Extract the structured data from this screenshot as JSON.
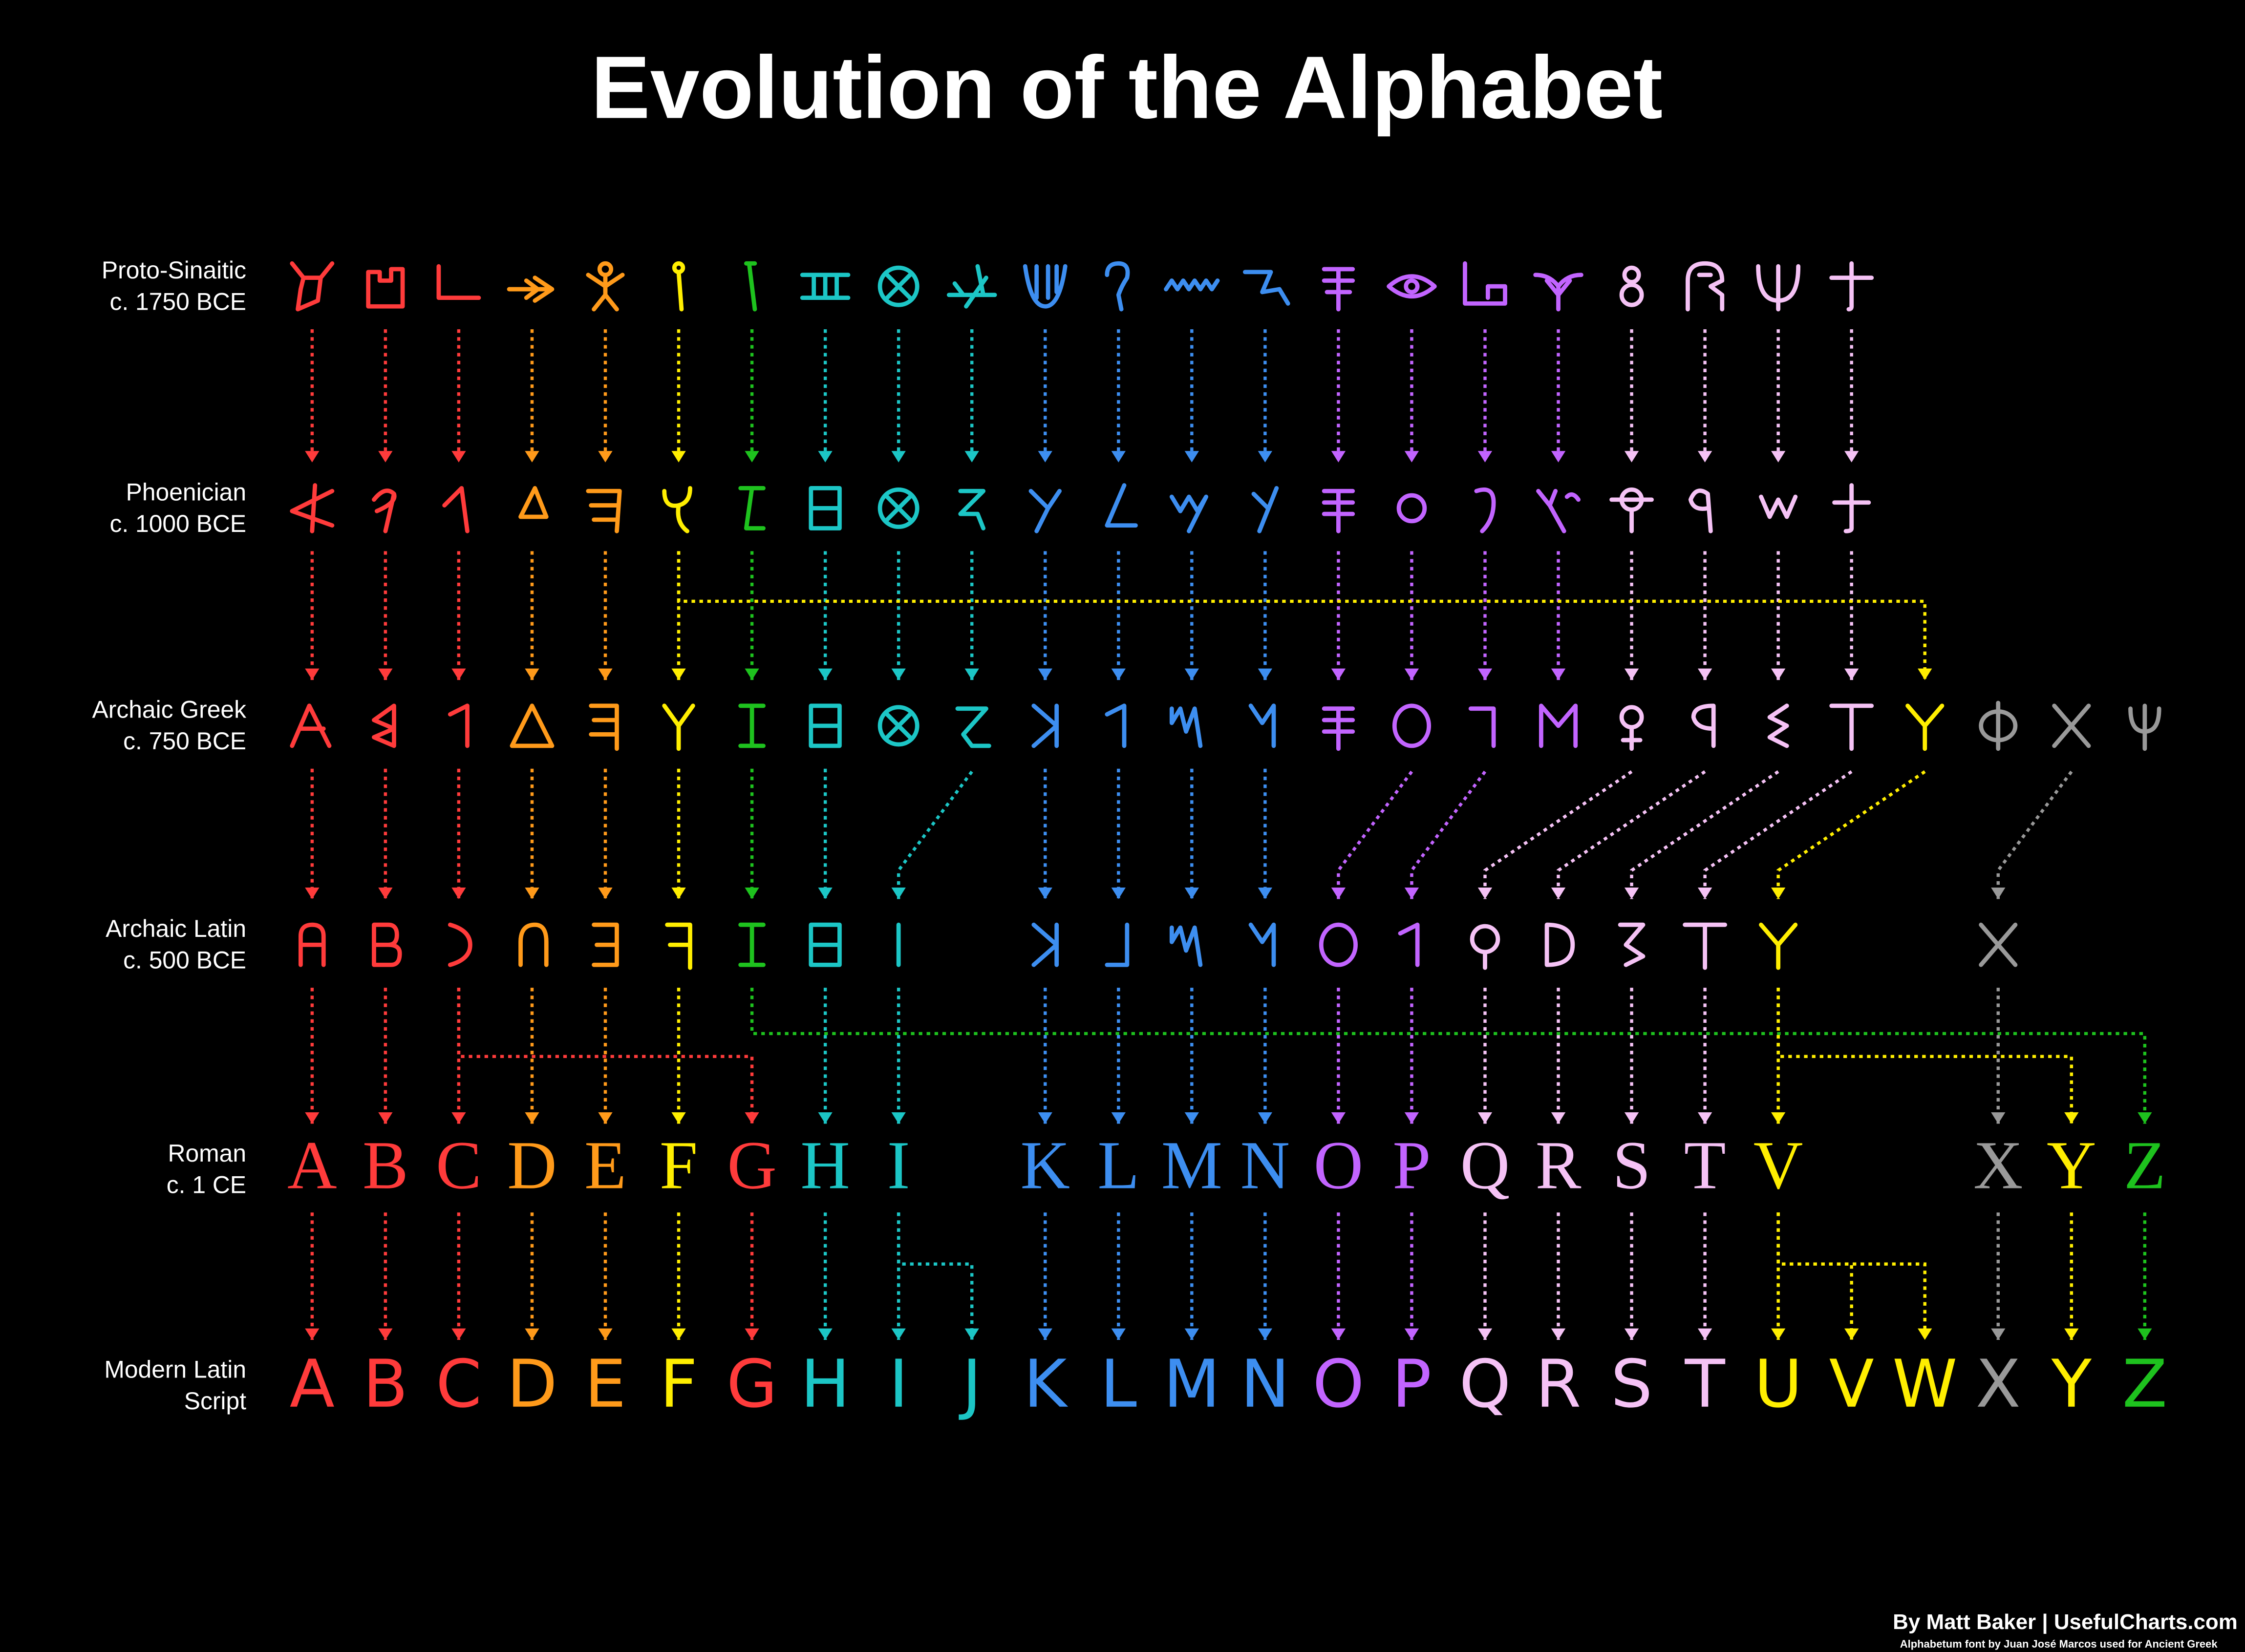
{
  "title": "Evolution of the Alphabet",
  "rows": [
    {
      "label": [
        "Proto-Sinaitic",
        "c. 1750 BCE"
      ],
      "cells": [
        {
          "color": "#ff3b3b"
        },
        {
          "color": "#ff3b3b"
        },
        {
          "color": "#ff3b3b"
        },
        {
          "color": "#ff9a1a"
        },
        {
          "color": "#ff9a1a"
        },
        {
          "color": "#ffee00"
        },
        {
          "color": "#1ec21e"
        },
        {
          "color": "#1cc6c6"
        },
        {
          "color": "#1cc6c6"
        },
        {
          "color": "#1cc6c6"
        },
        {
          "color": "#3d8ef0"
        },
        {
          "color": "#3d8ef0"
        },
        {
          "color": "#3d8ef0"
        },
        {
          "color": "#3d8ef0"
        },
        {
          "color": "#c264ff"
        },
        {
          "color": "#c264ff"
        },
        {
          "color": "#c264ff"
        },
        {
          "color": "#c264ff"
        },
        {
          "color": "#f5c2f5"
        },
        {
          "color": "#f5c2f5"
        },
        {
          "color": "#f5c2f5"
        },
        {
          "color": "#f5c2f5"
        },
        null,
        null,
        null,
        null
      ]
    },
    {
      "label": [
        "Phoenician",
        "c. 1000 BCE"
      ],
      "cells": [
        {
          "color": "#ff3b3b"
        },
        {
          "color": "#ff3b3b"
        },
        {
          "color": "#ff3b3b"
        },
        {
          "color": "#ff9a1a"
        },
        {
          "color": "#ff9a1a"
        },
        {
          "color": "#ffee00"
        },
        {
          "color": "#1ec21e"
        },
        {
          "color": "#1cc6c6"
        },
        {
          "color": "#1cc6c6"
        },
        {
          "color": "#1cc6c6"
        },
        {
          "color": "#3d8ef0"
        },
        {
          "color": "#3d8ef0"
        },
        {
          "color": "#3d8ef0"
        },
        {
          "color": "#3d8ef0"
        },
        {
          "color": "#c264ff"
        },
        {
          "color": "#c264ff"
        },
        {
          "color": "#c264ff"
        },
        {
          "color": "#c264ff"
        },
        {
          "color": "#f5c2f5"
        },
        {
          "color": "#f5c2f5"
        },
        {
          "color": "#f5c2f5"
        },
        {
          "color": "#f5c2f5"
        },
        null,
        null,
        null,
        null
      ]
    },
    {
      "label": [
        "Archaic Greek",
        "c. 750 BCE"
      ],
      "cells": [
        {
          "color": "#ff3b3b"
        },
        {
          "color": "#ff3b3b"
        },
        {
          "color": "#ff3b3b"
        },
        {
          "color": "#ff9a1a"
        },
        {
          "color": "#ff9a1a"
        },
        {
          "color": "#ffee00"
        },
        {
          "color": "#1ec21e"
        },
        {
          "color": "#1cc6c6"
        },
        {
          "color": "#1cc6c6"
        },
        {
          "color": "#1cc6c6"
        },
        {
          "color": "#3d8ef0"
        },
        {
          "color": "#3d8ef0"
        },
        {
          "color": "#3d8ef0"
        },
        {
          "color": "#3d8ef0"
        },
        {
          "color": "#c264ff"
        },
        {
          "color": "#c264ff"
        },
        {
          "color": "#c264ff"
        },
        {
          "color": "#c264ff"
        },
        {
          "color": "#f5c2f5"
        },
        {
          "color": "#f5c2f5"
        },
        {
          "color": "#f5c2f5"
        },
        {
          "color": "#f5c2f5"
        },
        {
          "color": "#ffee00"
        },
        {
          "color": "#999999"
        },
        {
          "color": "#999999"
        },
        {
          "color": "#999999"
        }
      ]
    },
    {
      "label": [
        "Archaic Latin",
        "c. 500 BCE"
      ],
      "cells": [
        {
          "color": "#ff3b3b"
        },
        {
          "color": "#ff3b3b"
        },
        {
          "color": "#ff3b3b"
        },
        {
          "color": "#ff9a1a"
        },
        {
          "color": "#ff9a1a"
        },
        {
          "color": "#ffee00"
        },
        {
          "color": "#1ec21e"
        },
        {
          "color": "#1cc6c6"
        },
        {
          "color": "#1cc6c6"
        },
        null,
        {
          "color": "#3d8ef0"
        },
        {
          "color": "#3d8ef0"
        },
        {
          "color": "#3d8ef0"
        },
        {
          "color": "#3d8ef0"
        },
        {
          "color": "#c264ff"
        },
        {
          "color": "#c264ff"
        },
        {
          "color": "#f5c2f5"
        },
        {
          "color": "#f5c2f5"
        },
        {
          "color": "#f5c2f5"
        },
        {
          "color": "#f5c2f5"
        },
        {
          "color": "#ffee00"
        },
        null,
        null,
        {
          "color": "#999999"
        },
        null,
        null
      ]
    },
    {
      "label": [
        "Roman",
        "c. 1 CE"
      ],
      "style": "roman",
      "cells": [
        {
          "text": "A",
          "color": "#ff3b3b"
        },
        {
          "text": "B",
          "color": "#ff3b3b"
        },
        {
          "text": "C",
          "color": "#ff3b3b"
        },
        {
          "text": "D",
          "color": "#ff9a1a"
        },
        {
          "text": "E",
          "color": "#ff9a1a"
        },
        {
          "text": "F",
          "color": "#ffee00"
        },
        {
          "text": "G",
          "color": "#ff3b3b"
        },
        {
          "text": "H",
          "color": "#1cc6c6"
        },
        {
          "text": "I",
          "color": "#1cc6c6"
        },
        null,
        {
          "text": "K",
          "color": "#3d8ef0"
        },
        {
          "text": "L",
          "color": "#3d8ef0"
        },
        {
          "text": "M",
          "color": "#3d8ef0"
        },
        {
          "text": "N",
          "color": "#3d8ef0"
        },
        {
          "text": "O",
          "color": "#c264ff"
        },
        {
          "text": "P",
          "color": "#c264ff"
        },
        {
          "text": "Q",
          "color": "#f5c2f5"
        },
        {
          "text": "R",
          "color": "#f5c2f5"
        },
        {
          "text": "S",
          "color": "#f5c2f5"
        },
        {
          "text": "T",
          "color": "#f5c2f5"
        },
        {
          "text": "V",
          "color": "#ffee00"
        },
        null,
        null,
        {
          "text": "X",
          "color": "#999999"
        },
        {
          "text": "Y",
          "color": "#ffee00"
        },
        {
          "text": "Z",
          "color": "#1ec21e"
        }
      ]
    },
    {
      "label": [
        "Modern Latin",
        "Script"
      ],
      "style": "modern",
      "cells": [
        {
          "text": "A",
          "color": "#ff3b3b"
        },
        {
          "text": "B",
          "color": "#ff3b3b"
        },
        {
          "text": "C",
          "color": "#ff3b3b"
        },
        {
          "text": "D",
          "color": "#ff9a1a"
        },
        {
          "text": "E",
          "color": "#ff9a1a"
        },
        {
          "text": "F",
          "color": "#ffee00"
        },
        {
          "text": "G",
          "color": "#ff3b3b"
        },
        {
          "text": "H",
          "color": "#1cc6c6"
        },
        {
          "text": "I",
          "color": "#1cc6c6"
        },
        {
          "text": "J",
          "color": "#1cc6c6"
        },
        {
          "text": "K",
          "color": "#3d8ef0"
        },
        {
          "text": "L",
          "color": "#3d8ef0"
        },
        {
          "text": "M",
          "color": "#3d8ef0"
        },
        {
          "text": "N",
          "color": "#3d8ef0"
        },
        {
          "text": "O",
          "color": "#c264ff"
        },
        {
          "text": "P",
          "color": "#c264ff"
        },
        {
          "text": "Q",
          "color": "#f5c2f5"
        },
        {
          "text": "R",
          "color": "#f5c2f5"
        },
        {
          "text": "S",
          "color": "#f5c2f5"
        },
        {
          "text": "T",
          "color": "#f5c2f5"
        },
        {
          "text": "U",
          "color": "#ffee00"
        },
        {
          "text": "V",
          "color": "#ffee00"
        },
        {
          "text": "W",
          "color": "#ffee00"
        },
        {
          "text": "X",
          "color": "#999999"
        },
        {
          "text": "Y",
          "color": "#ffee00"
        },
        {
          "text": "Z",
          "color": "#1ec21e"
        }
      ]
    }
  ],
  "credit": "By Matt Baker | UsefulCharts.com",
  "font_credit": "Alphabetum font by Juan José Marcos used for Ancient Greek"
}
